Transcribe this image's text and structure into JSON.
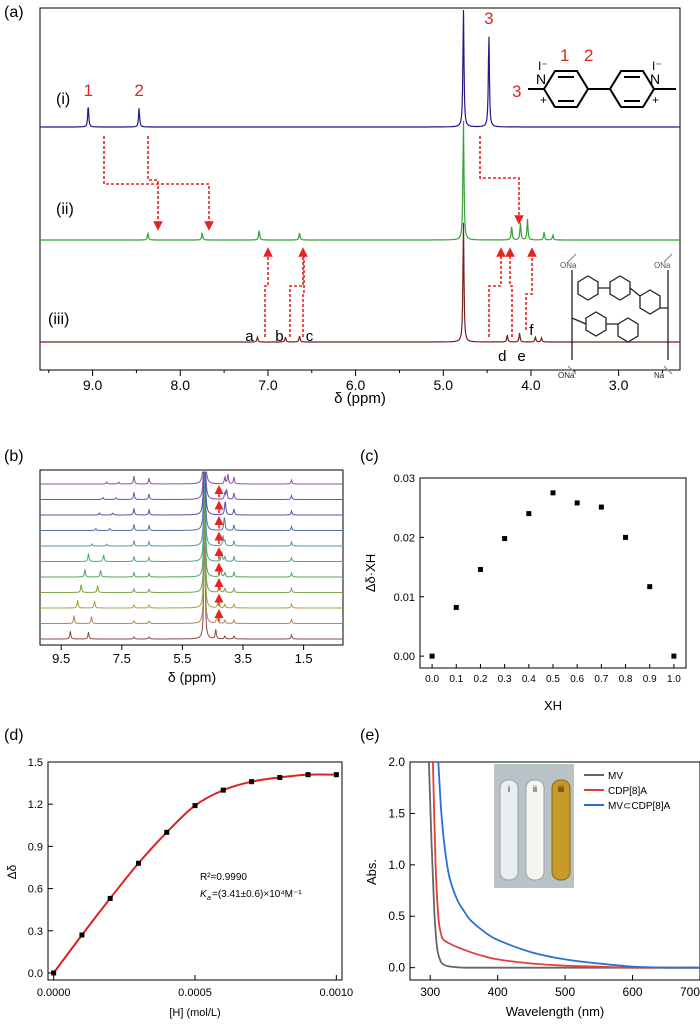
{
  "panels": {
    "a": {
      "label": "(a)"
    },
    "b": {
      "label": "(b)"
    },
    "c": {
      "label": "(c)"
    },
    "d": {
      "label": "(d)"
    },
    "e": {
      "label": "(e)"
    }
  },
  "colors": {
    "trace_i": "#1f1a8c",
    "trace_ii": "#33a336",
    "trace_iii": "#7a1f1f",
    "arrow": "#e8231f",
    "label_red": "#d42a1f",
    "fit": "#e01f1f",
    "mv": "#666666",
    "cdp": "#e0403a",
    "complex": "#2a6fd6"
  },
  "chart_data": [
    {
      "type": "line",
      "panel": "a",
      "xlabel": "δ (ppm)",
      "xticks": [
        "9.0",
        "8.0",
        "7.0",
        "6.0",
        "5.0",
        "4.0",
        "3.0"
      ],
      "xlim": [
        9.6,
        2.3
      ],
      "trace_labels": [
        "(i)",
        "(ii)",
        "(iii)"
      ],
      "series": [
        {
          "peaks": [
            {
              "x": 9.05,
              "h": 22
            },
            {
              "x": 8.47,
              "h": 19
            },
            {
              "x": 4.77,
              "h": 120
            },
            {
              "x": 4.48,
              "h": 94
            }
          ]
        },
        {
          "peaks": [
            {
              "x": 8.37,
              "h": 7
            },
            {
              "x": 7.75,
              "h": 7
            },
            {
              "x": 7.1,
              "h": 10
            },
            {
              "x": 6.64,
              "h": 7
            },
            {
              "x": 4.77,
              "h": 120
            },
            {
              "x": 4.22,
              "h": 14
            },
            {
              "x": 4.12,
              "h": 17
            },
            {
              "x": 4.04,
              "h": 21
            },
            {
              "x": 3.85,
              "h": 8
            },
            {
              "x": 3.75,
              "h": 5
            }
          ]
        },
        {
          "peaks": [
            {
              "x": 7.12,
              "h": 5
            },
            {
              "x": 6.8,
              "h": 5
            },
            {
              "x": 6.64,
              "h": 6
            },
            {
              "x": 4.77,
              "h": 120
            },
            {
              "x": 4.27,
              "h": 7
            },
            {
              "x": 4.13,
              "h": 9
            },
            {
              "x": 3.95,
              "h": 5
            },
            {
              "x": 3.88,
              "h": 4
            }
          ]
        }
      ],
      "peak_labels": [
        {
          "text": "1",
          "x": 9.05,
          "trace": 0
        },
        {
          "text": "2",
          "x": 8.47,
          "trace": 0
        },
        {
          "text": "3",
          "x": 4.48,
          "trace": 0
        },
        {
          "text": "a",
          "x": 7.12,
          "trace": 2
        },
        {
          "text": "b",
          "x": 6.8,
          "trace": 2
        },
        {
          "text": "c",
          "x": 6.64,
          "trace": 2
        },
        {
          "text": "d",
          "x": 4.27,
          "trace": 2
        },
        {
          "text": "e",
          "x": 4.13,
          "trace": 2
        },
        {
          "text": "f",
          "x": 3.95,
          "trace": 2
        }
      ],
      "structure_labels": [
        "1",
        "2",
        "3"
      ]
    },
    {
      "type": "line",
      "panel": "b",
      "xlabel": "δ (ppm)",
      "xticks": [
        "9.5",
        "7.5",
        "5.5",
        "3.5",
        "1.5"
      ],
      "xlim": [
        10.2,
        0.2
      ],
      "stack_count": 11
    },
    {
      "type": "scatter",
      "panel": "c",
      "xlabel": "XH",
      "ylabel": "Δδ·XH",
      "xlim": [
        -0.05,
        1.05
      ],
      "ylim": [
        -0.002,
        0.03
      ],
      "xticks": [
        "0.0",
        "0.1",
        "0.2",
        "0.3",
        "0.4",
        "0.5",
        "0.6",
        "0.7",
        "0.8",
        "0.9",
        "1.0"
      ],
      "yticks": [
        "0.00",
        "0.01",
        "0.02",
        "0.03"
      ],
      "x": [
        0.0,
        0.1,
        0.2,
        0.3,
        0.4,
        0.5,
        0.6,
        0.7,
        0.8,
        0.9,
        1.0
      ],
      "y": [
        0.0,
        0.0082,
        0.0146,
        0.0198,
        0.024,
        0.0275,
        0.0258,
        0.0251,
        0.02,
        0.0117,
        0.0
      ]
    },
    {
      "type": "scatter",
      "panel": "d",
      "xlabel": "[H] (mol/L)",
      "ylabel": "Δδ",
      "xlim": [
        -2e-05,
        0.00102
      ],
      "ylim": [
        -0.05,
        1.5
      ],
      "xticks": [
        "0.0000",
        "0.0005",
        "0.0010"
      ],
      "yticks": [
        "0.0",
        "0.3",
        "0.6",
        "0.9",
        "1.2",
        "1.5"
      ],
      "x": [
        0.0,
        0.0001,
        0.0002,
        0.0003,
        0.0004,
        0.0005,
        0.0006,
        0.0007,
        0.0008,
        0.0009,
        0.001
      ],
      "y": [
        0.0,
        0.27,
        0.53,
        0.78,
        1.0,
        1.19,
        1.3,
        1.36,
        1.39,
        1.41,
        1.41
      ],
      "fit_note_line1": "R²=0.9990",
      "fit_note_line2_prefix": "K",
      "fit_note_line2_sub": "a",
      "fit_note_line2_rest": "=(3.41±0.6)×10⁴M⁻¹"
    },
    {
      "type": "line",
      "panel": "e",
      "xlabel": "Wavelength (nm)",
      "ylabel": "Abs.",
      "xlim": [
        270,
        700
      ],
      "ylim": [
        -0.12,
        2.0
      ],
      "xticks": [
        "300",
        "400",
        "500",
        "600",
        "700"
      ],
      "yticks": [
        "0.0",
        "0.5",
        "1.0",
        "1.5",
        "2.0"
      ],
      "legend_position": "top-right",
      "series": [
        {
          "name": "MV",
          "x": [
            298,
            302,
            306,
            310,
            315,
            320,
            330,
            350,
            400,
            500,
            600,
            700
          ],
          "y": [
            2.0,
            1.2,
            0.55,
            0.2,
            0.07,
            0.03,
            0.01,
            0.0,
            0.0,
            0.0,
            0.0,
            0.0
          ]
        },
        {
          "name": "CDP[8]A",
          "x": [
            304,
            308,
            312,
            316,
            320,
            330,
            340,
            360,
            380,
            400,
            450,
            500,
            550,
            600,
            700
          ],
          "y": [
            2.0,
            1.0,
            0.5,
            0.33,
            0.27,
            0.23,
            0.2,
            0.15,
            0.11,
            0.08,
            0.04,
            0.02,
            0.01,
            0.0,
            0.0
          ]
        },
        {
          "name": "MV⊂CDP[8]A",
          "x": [
            312,
            316,
            320,
            325,
            330,
            340,
            350,
            360,
            380,
            400,
            450,
            500,
            550,
            600,
            650,
            700
          ],
          "y": [
            2.0,
            1.55,
            1.25,
            1.0,
            0.84,
            0.66,
            0.55,
            0.46,
            0.35,
            0.27,
            0.15,
            0.08,
            0.04,
            0.01,
            0.0,
            0.0
          ]
        }
      ],
      "inset_vial_labels": [
        "i",
        "ii",
        "iii"
      ]
    }
  ]
}
